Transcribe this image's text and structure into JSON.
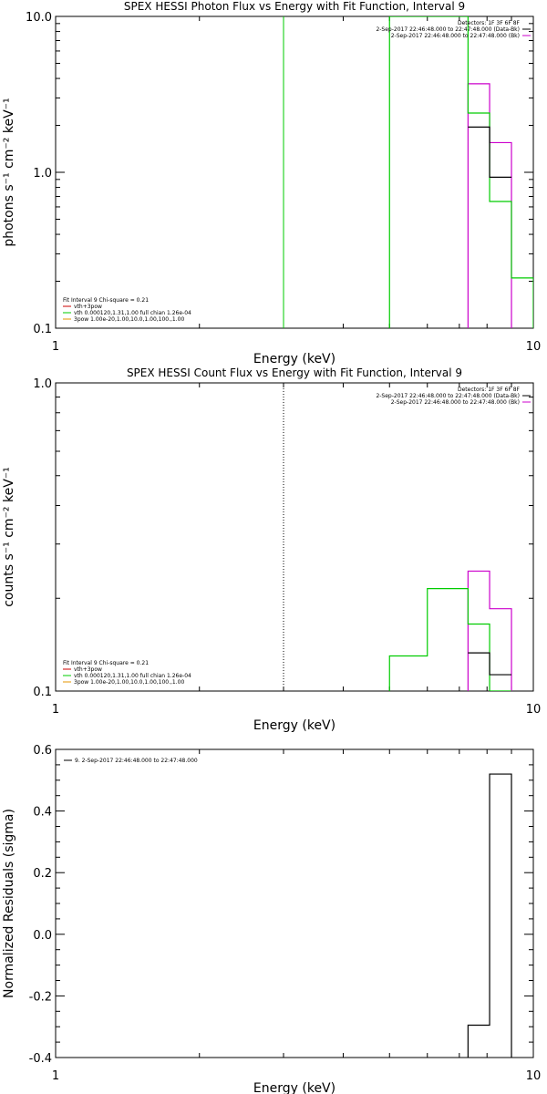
{
  "colors": {
    "black": "#000000",
    "green": "#00cc00",
    "magenta": "#cc00cc",
    "orange": "#e69500"
  },
  "chart_data": [
    {
      "type": "line",
      "title": "SPEX HESSI Photon Flux vs Energy with Fit Function, Interval 9",
      "xlabel": "Energy (keV)",
      "ylabel": "photons s⁻¹ cm⁻² keV⁻¹",
      "xscale": "log",
      "yscale": "log",
      "xlim": [
        1,
        10
      ],
      "ylim": [
        0.1,
        10
      ],
      "xticks": [
        {
          "v": 1,
          "label": "1"
        },
        {
          "v": 10,
          "label": "10"
        }
      ],
      "yticks": [
        {
          "v": 0.1,
          "label": "0.1"
        },
        {
          "v": 1,
          "label": "1.0"
        },
        {
          "v": 10,
          "label": "10.0"
        }
      ],
      "vlines": [
        {
          "x": 3,
          "color": "#00cc00",
          "style": "solid"
        }
      ],
      "legend_tr": {
        "lines": [
          "Detectors: 1F 3F 6F 8F",
          "2-Sep-2017 22:46:48.000 to 22:47:48.000 (Data-Bk)",
          "2-Sep-2017 22:46:48.000 to 22:47:48.000 (Bk)"
        ],
        "colors": [
          "",
          "#000000",
          "#cc00cc"
        ]
      },
      "legend_bl": {
        "lines": [
          "Fit Interval 9   Chi-square = 0.21",
          "vth+3pow",
          "vth 0.000120,1.31,1.00  full chian 1.26e-04",
          "3pow 1.00e-20,1.00,10.0,1.00,100.,1.00"
        ],
        "colors": [
          "",
          "#cc0000",
          "#00cc00",
          "#e69500"
        ]
      },
      "series": [
        {
          "color": "#cc00cc",
          "edges": [
            7.3,
            8.1,
            9.0
          ],
          "values": [
            3.7,
            1.55
          ],
          "drop": "both"
        },
        {
          "color": "#00cc00",
          "edges": [
            5.0,
            6.0,
            7.3,
            8.1,
            9.0,
            10.0
          ],
          "values": [
            10,
            10,
            2.4,
            0.65,
            0.21
          ],
          "drop": "both"
        },
        {
          "color": "#000000",
          "edges": [
            7.3,
            8.1,
            9.0
          ],
          "values": [
            1.95,
            0.93
          ],
          "drop": "none"
        }
      ]
    },
    {
      "type": "line",
      "title": "SPEX HESSI Count Flux vs Energy with Fit Function, Interval 9",
      "xlabel": "Energy (keV)",
      "ylabel": "counts s⁻¹ cm⁻² keV⁻¹",
      "xscale": "log",
      "yscale": "log",
      "xlim": [
        1,
        10
      ],
      "ylim": [
        0.1,
        1.0
      ],
      "xticks": [
        {
          "v": 1,
          "label": "1"
        },
        {
          "v": 10,
          "label": "10"
        }
      ],
      "yticks": [
        {
          "v": 0.1,
          "label": "0.1"
        },
        {
          "v": 1,
          "label": "1.0"
        }
      ],
      "vlines": [
        {
          "x": 3,
          "color": "#000000",
          "style": "dotted"
        }
      ],
      "legend_tr": {
        "lines": [
          "Detectors: 1F 3F 6F 8F",
          "2-Sep-2017 22:46:48.000 to 22:47:48.000 (Data-Bk)",
          "2-Sep-2017 22:46:48.000 to 22:47:48.000 (Bk)"
        ],
        "colors": [
          "",
          "#000000",
          "#cc00cc"
        ]
      },
      "legend_bl": {
        "lines": [
          "Fit Interval 9   Chi-square = 0.21",
          "vth+3pow",
          "vth 0.000120,1.31,1.00  full chian 1.26e-04",
          "3pow 1.00e-20,1.00,10.0,1.00,100.,1.00"
        ],
        "colors": [
          "",
          "#cc0000",
          "#00cc00",
          "#e69500"
        ]
      },
      "series": [
        {
          "color": "#cc00cc",
          "edges": [
            7.3,
            8.1,
            9.0
          ],
          "values": [
            0.245,
            0.185
          ],
          "drop": "both"
        },
        {
          "color": "#00cc00",
          "edges": [
            5.0,
            6.0,
            7.3,
            8.1,
            9.0
          ],
          "values": [
            0.13,
            0.215,
            0.165,
            0.1
          ],
          "drop": "both"
        },
        {
          "color": "#000000",
          "edges": [
            7.3,
            8.1,
            9.0
          ],
          "values": [
            0.133,
            0.113
          ],
          "drop": "none"
        }
      ]
    },
    {
      "type": "line",
      "title": "",
      "xlabel": "Energy (keV)",
      "ylabel": "Normalized Residuals (sigma)",
      "xscale": "log",
      "yscale": "linear",
      "xlim": [
        1,
        10
      ],
      "ylim": [
        -0.4,
        0.6
      ],
      "xticks": [
        {
          "v": 1,
          "label": "1"
        },
        {
          "v": 10,
          "label": "10"
        }
      ],
      "yticks": [
        {
          "v": -0.4,
          "label": "-0.4"
        },
        {
          "v": -0.2,
          "label": "-0.2"
        },
        {
          "v": 0,
          "label": "0.0"
        },
        {
          "v": 0.2,
          "label": "0.2"
        },
        {
          "v": 0.4,
          "label": "0.4"
        },
        {
          "v": 0.6,
          "label": "0.6"
        }
      ],
      "vlines": [],
      "legend_tl": {
        "lines": [
          "9. 2-Sep-2017 22:46:48.000 to 22:47:48.000"
        ],
        "colors": [
          "#000000"
        ]
      },
      "series": [
        {
          "color": "#000000",
          "edges": [
            7.3,
            8.1,
            9.0
          ],
          "values": [
            -0.295,
            0.52
          ],
          "drop": "both"
        }
      ]
    }
  ]
}
